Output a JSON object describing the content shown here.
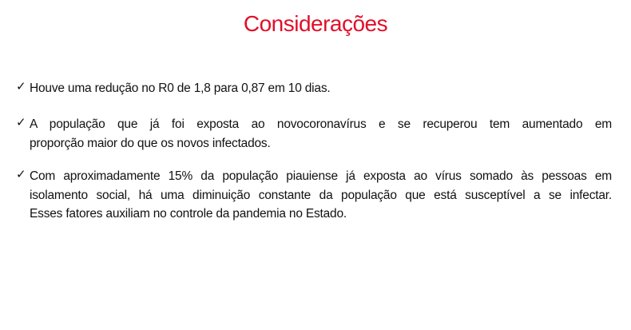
{
  "title": "Considerações",
  "accent_color": "#e0102a",
  "bullet_icon": "check-mark-icon",
  "bullets": [
    {
      "lines": [
        "Houve uma redução no R0 de 1,8 para 0,87 em 10 dias."
      ]
    },
    {
      "lines": [
        "A população que já foi exposta ao novocoronavírus e se recuperou tem aumentado em",
        "proporção maior do que os novos infectados."
      ]
    },
    {
      "lines": [
        "Com aproximadamente 15% da população piauiense já exposta ao vírus somado às pessoas em",
        "isolamento social, há uma diminuição constante da população que está susceptível a se infectar.",
        "Esses fatores auxiliam no controle da pandemia no Estado."
      ]
    }
  ]
}
